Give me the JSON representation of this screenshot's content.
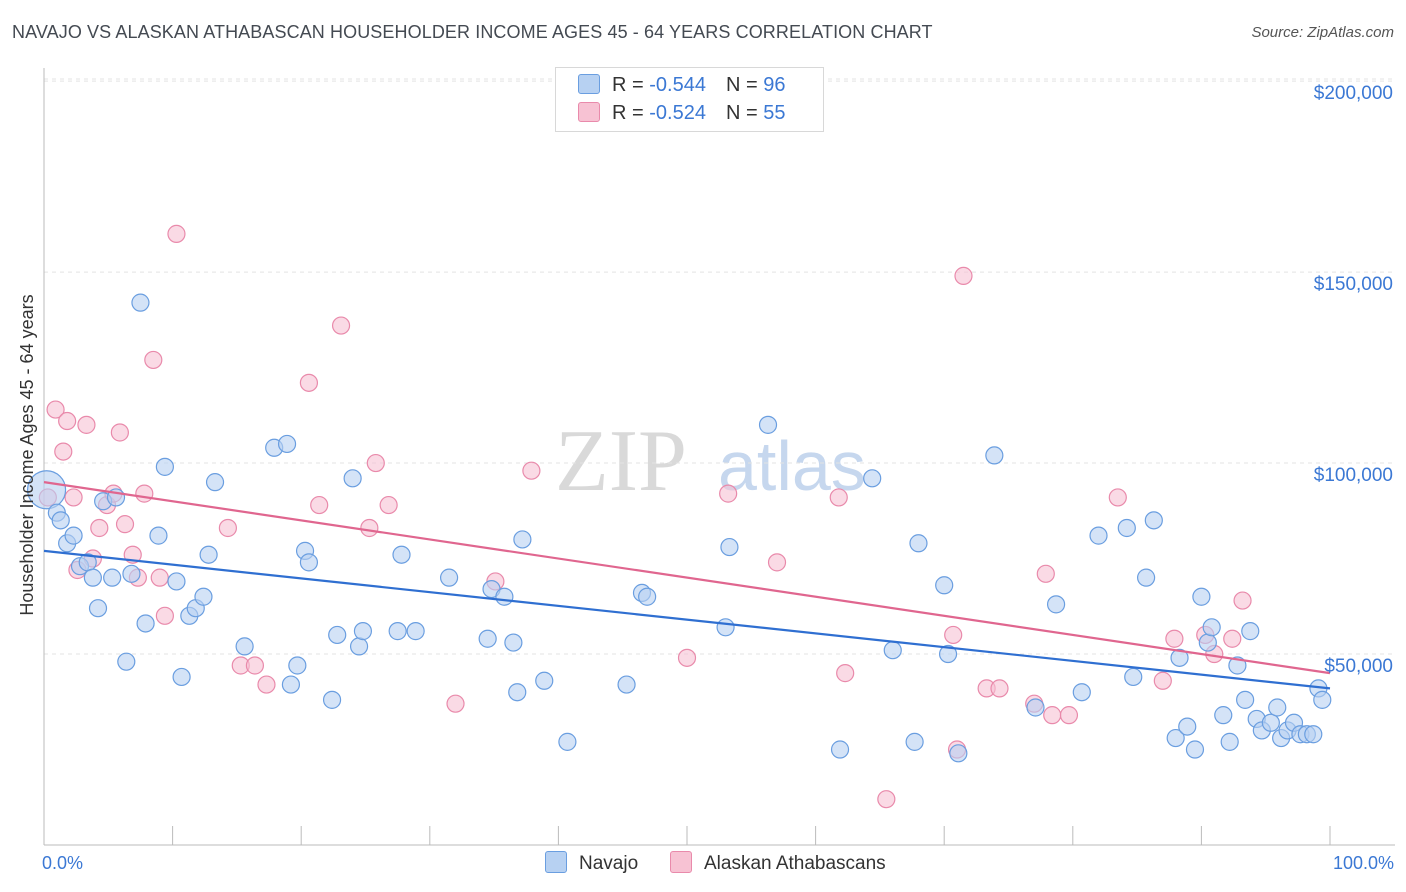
{
  "title": "NAVAJO VS ALASKAN ATHABASCAN HOUSEHOLDER INCOME AGES 45 - 64 YEARS CORRELATION CHART",
  "source": "Source: ZipAtlas.com",
  "watermark": {
    "zip": "ZIP",
    "atlas": "atlas"
  },
  "legend": {
    "navajo": {
      "r_label": "R = ",
      "r_value": "-0.544",
      "n_label": "N = ",
      "n_value": "96"
    },
    "alaskan": {
      "r_label": "R = ",
      "r_value": "-0.524",
      "n_label": "N = ",
      "n_value": "55"
    }
  },
  "bottom_legend": {
    "navajo": "Navajo",
    "alaskan": "Alaskan Athabascans"
  },
  "colors": {
    "navajo_fill": "#b7d1f2",
    "navajo_stroke": "#6a9ee0",
    "navajo_line": "#2f6fd1",
    "alaskan_fill": "#f7c2d3",
    "alaskan_stroke": "#e98aab",
    "alaskan_line": "#e0668f",
    "axis_label": "#3b78d4",
    "grid": "#e3e3e3"
  },
  "chart_data": {
    "type": "scatter",
    "title": "NAVAJO VS ALASKAN ATHABASCAN HOUSEHOLDER INCOME AGES 45 - 64 YEARS CORRELATION CHART",
    "xlabel": "",
    "ylabel": "Householder Income Ages 45 - 64 years",
    "xlim": [
      0,
      100
    ],
    "ylim": [
      0,
      205000
    ],
    "x_tick_labels": {
      "min": "0.0%",
      "max": "100.0%"
    },
    "y_ticks": [
      {
        "value": 200000,
        "label": "$200,000"
      },
      {
        "value": 150000,
        "label": "$150,000"
      },
      {
        "value": 100000,
        "label": "$100,000"
      },
      {
        "value": 50000,
        "label": "$50,000"
      }
    ],
    "series": [
      {
        "name": "Navajo",
        "trend": {
          "x0": 0,
          "y0": 77000,
          "x1": 100,
          "y1": 41000
        },
        "points": [
          [
            0.2,
            93000
          ],
          [
            1.0,
            87000
          ],
          [
            1.3,
            85000
          ],
          [
            1.8,
            79000
          ],
          [
            2.3,
            81000
          ],
          [
            2.8,
            73000
          ],
          [
            3.4,
            74000
          ],
          [
            3.8,
            70000
          ],
          [
            4.2,
            62000
          ],
          [
            4.6,
            90000
          ],
          [
            5.3,
            70000
          ],
          [
            5.6,
            91000
          ],
          [
            6.4,
            48000
          ],
          [
            6.8,
            71000
          ],
          [
            7.5,
            142000
          ],
          [
            7.9,
            58000
          ],
          [
            8.9,
            81000
          ],
          [
            9.4,
            99000
          ],
          [
            10.3,
            69000
          ],
          [
            10.7,
            44000
          ],
          [
            11.3,
            60000
          ],
          [
            11.8,
            62000
          ],
          [
            12.4,
            65000
          ],
          [
            12.8,
            76000
          ],
          [
            13.3,
            95000
          ],
          [
            15.6,
            52000
          ],
          [
            17.9,
            104000
          ],
          [
            18.9,
            105000
          ],
          [
            19.2,
            42000
          ],
          [
            19.7,
            47000
          ],
          [
            20.3,
            77000
          ],
          [
            20.6,
            74000
          ],
          [
            22.4,
            38000
          ],
          [
            22.8,
            55000
          ],
          [
            24.0,
            96000
          ],
          [
            24.5,
            52000
          ],
          [
            24.8,
            56000
          ],
          [
            27.5,
            56000
          ],
          [
            27.8,
            76000
          ],
          [
            28.9,
            56000
          ],
          [
            31.5,
            70000
          ],
          [
            34.5,
            54000
          ],
          [
            34.8,
            67000
          ],
          [
            35.8,
            65000
          ],
          [
            36.5,
            53000
          ],
          [
            36.8,
            40000
          ],
          [
            37.2,
            80000
          ],
          [
            38.9,
            43000
          ],
          [
            40.7,
            27000
          ],
          [
            45.3,
            42000
          ],
          [
            46.5,
            66000
          ],
          [
            46.9,
            65000
          ],
          [
            53.0,
            57000
          ],
          [
            53.3,
            78000
          ],
          [
            56.3,
            110000
          ],
          [
            61.9,
            25000
          ],
          [
            64.4,
            96000
          ],
          [
            66.0,
            51000
          ],
          [
            67.7,
            27000
          ],
          [
            68.0,
            79000
          ],
          [
            70.0,
            68000
          ],
          [
            70.3,
            50000
          ],
          [
            71.1,
            24000
          ],
          [
            73.9,
            102000
          ],
          [
            77.1,
            36000
          ],
          [
            78.7,
            63000
          ],
          [
            80.7,
            40000
          ],
          [
            82.0,
            81000
          ],
          [
            84.2,
            83000
          ],
          [
            84.7,
            44000
          ],
          [
            85.7,
            70000
          ],
          [
            86.3,
            85000
          ],
          [
            88.0,
            28000
          ],
          [
            88.3,
            49000
          ],
          [
            88.9,
            31000
          ],
          [
            89.5,
            25000
          ],
          [
            90.0,
            65000
          ],
          [
            90.5,
            53000
          ],
          [
            90.8,
            57000
          ],
          [
            91.7,
            34000
          ],
          [
            92.2,
            27000
          ],
          [
            92.8,
            47000
          ],
          [
            93.4,
            38000
          ],
          [
            93.8,
            56000
          ],
          [
            94.3,
            33000
          ],
          [
            94.7,
            30000
          ],
          [
            95.4,
            32000
          ],
          [
            95.9,
            36000
          ],
          [
            96.2,
            28000
          ],
          [
            96.7,
            30000
          ],
          [
            97.2,
            32000
          ],
          [
            97.7,
            29000
          ],
          [
            98.2,
            29000
          ],
          [
            98.7,
            29000
          ],
          [
            99.1,
            41000
          ],
          [
            99.4,
            38000
          ]
        ]
      },
      {
        "name": "Alaskan Athabascans",
        "trend": {
          "x0": 0,
          "y0": 95000,
          "x1": 100,
          "y1": 45000
        },
        "points": [
          [
            0.3,
            91000
          ],
          [
            0.9,
            114000
          ],
          [
            1.5,
            103000
          ],
          [
            1.8,
            111000
          ],
          [
            2.3,
            91000
          ],
          [
            2.6,
            72000
          ],
          [
            3.3,
            110000
          ],
          [
            3.8,
            75000
          ],
          [
            4.3,
            83000
          ],
          [
            4.9,
            89000
          ],
          [
            5.4,
            92000
          ],
          [
            5.9,
            108000
          ],
          [
            6.3,
            84000
          ],
          [
            6.9,
            76000
          ],
          [
            7.3,
            70000
          ],
          [
            7.8,
            92000
          ],
          [
            8.5,
            127000
          ],
          [
            9.0,
            70000
          ],
          [
            9.4,
            60000
          ],
          [
            10.3,
            160000
          ],
          [
            14.3,
            83000
          ],
          [
            15.3,
            47000
          ],
          [
            16.4,
            47000
          ],
          [
            17.3,
            42000
          ],
          [
            20.6,
            121000
          ],
          [
            21.4,
            89000
          ],
          [
            23.1,
            136000
          ],
          [
            25.3,
            83000
          ],
          [
            25.8,
            100000
          ],
          [
            26.8,
            89000
          ],
          [
            32.0,
            37000
          ],
          [
            35.1,
            69000
          ],
          [
            37.9,
            98000
          ],
          [
            50.0,
            49000
          ],
          [
            53.2,
            92000
          ],
          [
            57.0,
            74000
          ],
          [
            61.8,
            91000
          ],
          [
            62.3,
            45000
          ],
          [
            65.5,
            12000
          ],
          [
            70.7,
            55000
          ],
          [
            71.0,
            25000
          ],
          [
            71.5,
            149000
          ],
          [
            73.3,
            41000
          ],
          [
            74.3,
            41000
          ],
          [
            77.0,
            37000
          ],
          [
            77.9,
            71000
          ],
          [
            78.4,
            34000
          ],
          [
            79.7,
            34000
          ],
          [
            83.5,
            91000
          ],
          [
            87.0,
            43000
          ],
          [
            87.9,
            54000
          ],
          [
            90.3,
            55000
          ],
          [
            91.0,
            50000
          ],
          [
            92.4,
            54000
          ],
          [
            93.2,
            64000
          ]
        ]
      }
    ]
  }
}
